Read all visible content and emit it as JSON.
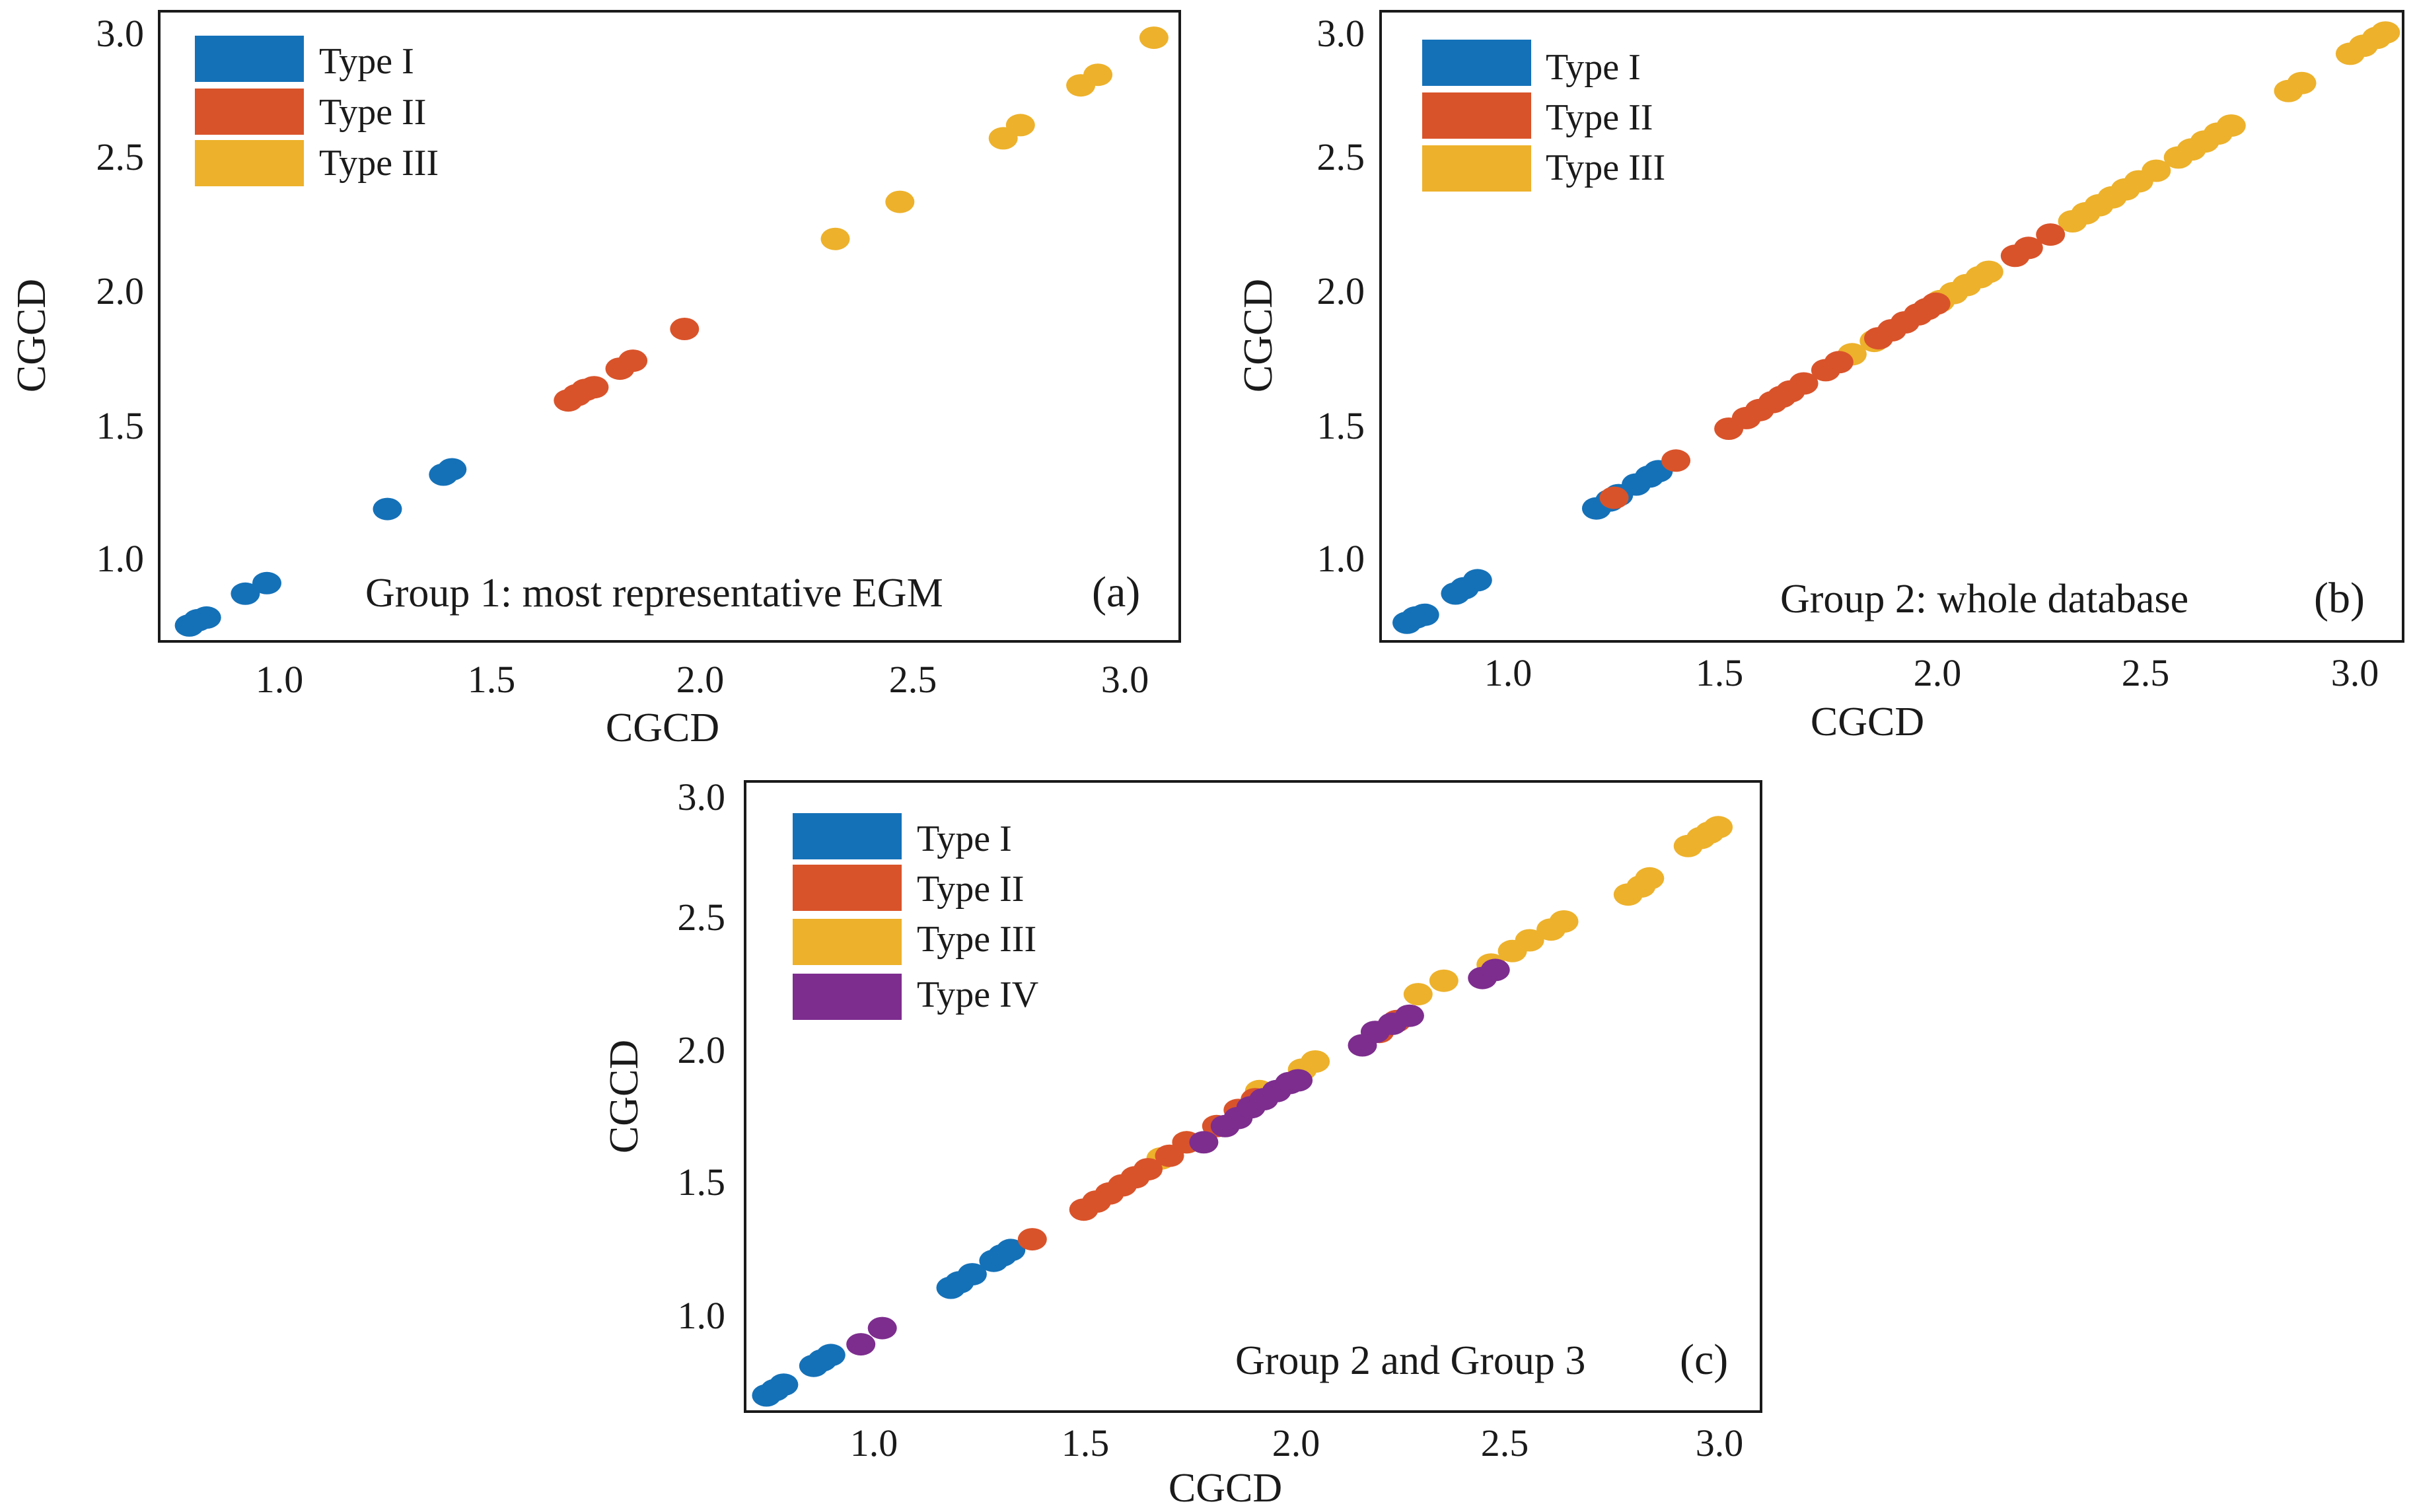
{
  "figure": {
    "colors": {
      "type_i": "#1471B8",
      "type_ii": "#D9532A",
      "type_iii": "#EDB12B",
      "type_iv": "#7D2D8E",
      "axis": "#1a1a1a"
    }
  },
  "chart_data": [
    {
      "id": "a",
      "type": "scatter",
      "xlabel": "CGCD",
      "ylabel": "CGCD",
      "xlim": [
        0.73,
        3.1
      ],
      "ylim": [
        0.72,
        3.1
      ],
      "xticks": [
        "1.0",
        "1.5",
        "2.0",
        "2.5",
        "3.0"
      ],
      "yticks": [
        "1.0",
        "1.5",
        "2.0",
        "2.5",
        "3.0"
      ],
      "annotation": "Group 1: most representative EGM",
      "panel_label": "(a)",
      "legend_position": "top-left",
      "series": [
        {
          "name": "Type I",
          "color": "#1471B8",
          "points": [
            [
              0.8,
              0.78
            ],
            [
              0.82,
              0.8
            ],
            [
              0.84,
              0.81
            ],
            [
              0.93,
              0.9
            ],
            [
              0.98,
              0.94
            ],
            [
              1.26,
              1.22
            ],
            [
              1.39,
              1.35
            ],
            [
              1.41,
              1.37
            ]
          ]
        },
        {
          "name": "Type II",
          "color": "#D9532A",
          "points": [
            [
              1.68,
              1.63
            ],
            [
              1.7,
              1.65
            ],
            [
              1.72,
              1.67
            ],
            [
              1.74,
              1.68
            ],
            [
              1.8,
              1.75
            ],
            [
              1.83,
              1.78
            ],
            [
              1.95,
              1.9
            ]
          ]
        },
        {
          "name": "Type III",
          "color": "#EDB12B",
          "points": [
            [
              2.3,
              2.24
            ],
            [
              2.45,
              2.38
            ],
            [
              2.69,
              2.62
            ],
            [
              2.73,
              2.67
            ],
            [
              2.87,
              2.82
            ],
            [
              2.91,
              2.86
            ],
            [
              3.04,
              3.0
            ]
          ]
        }
      ]
    },
    {
      "id": "b",
      "type": "scatter",
      "xlabel": "CGCD",
      "ylabel": "CGCD",
      "xlim": [
        0.73,
        3.05
      ],
      "ylim": [
        0.72,
        3.09
      ],
      "xticks": [
        "1.0",
        "1.5",
        "2.0",
        "2.5",
        "3.0"
      ],
      "yticks": [
        "1.0",
        "1.5",
        "2.0",
        "2.5",
        "3.0"
      ],
      "annotation": "Group 2: whole database",
      "panel_label": "(b)",
      "legend_position": "top-left",
      "series": [
        {
          "name": "Type I",
          "color": "#1471B8",
          "points": [
            [
              0.79,
              0.79
            ],
            [
              0.81,
              0.81
            ],
            [
              0.83,
              0.82
            ],
            [
              0.9,
              0.9
            ],
            [
              0.92,
              0.92
            ],
            [
              0.95,
              0.95
            ],
            [
              1.22,
              1.22
            ],
            [
              1.25,
              1.25
            ],
            [
              1.27,
              1.27
            ],
            [
              1.31,
              1.31
            ],
            [
              1.34,
              1.34
            ],
            [
              1.36,
              1.36
            ]
          ]
        },
        {
          "name": "Type III",
          "color": "#EDB12B",
          "points": [
            [
              1.8,
              1.8
            ],
            [
              1.85,
              1.85
            ],
            [
              2.0,
              2.0
            ],
            [
              2.03,
              2.03
            ],
            [
              2.06,
              2.06
            ],
            [
              2.09,
              2.09
            ],
            [
              2.11,
              2.11
            ],
            [
              2.3,
              2.3
            ],
            [
              2.33,
              2.33
            ],
            [
              2.36,
              2.36
            ],
            [
              2.39,
              2.39
            ],
            [
              2.42,
              2.42
            ],
            [
              2.45,
              2.45
            ],
            [
              2.49,
              2.49
            ],
            [
              2.54,
              2.54
            ],
            [
              2.57,
              2.57
            ],
            [
              2.6,
              2.6
            ],
            [
              2.63,
              2.63
            ],
            [
              2.66,
              2.66
            ],
            [
              2.79,
              2.79
            ],
            [
              2.82,
              2.82
            ],
            [
              2.93,
              2.93
            ],
            [
              2.96,
              2.96
            ],
            [
              2.99,
              2.99
            ],
            [
              3.01,
              3.01
            ]
          ]
        },
        {
          "name": "Type II",
          "color": "#D9532A",
          "points": [
            [
              1.26,
              1.26
            ],
            [
              1.4,
              1.4
            ],
            [
              1.52,
              1.52
            ],
            [
              1.56,
              1.56
            ],
            [
              1.59,
              1.59
            ],
            [
              1.62,
              1.62
            ],
            [
              1.64,
              1.64
            ],
            [
              1.66,
              1.66
            ],
            [
              1.69,
              1.69
            ],
            [
              1.74,
              1.74
            ],
            [
              1.77,
              1.77
            ],
            [
              1.86,
              1.86
            ],
            [
              1.89,
              1.89
            ],
            [
              1.92,
              1.92
            ],
            [
              1.95,
              1.95
            ],
            [
              1.97,
              1.97
            ],
            [
              1.99,
              1.99
            ],
            [
              2.17,
              2.17
            ],
            [
              2.2,
              2.2
            ],
            [
              2.25,
              2.25
            ]
          ]
        }
      ]
    },
    {
      "id": "c",
      "type": "scatter",
      "xlabel": "CGCD",
      "ylabel": "CGCD",
      "xlim": [
        0.73,
        3.1
      ],
      "ylim": [
        0.72,
        3.06
      ],
      "xticks": [
        "1.0",
        "1.5",
        "2.0",
        "2.5",
        "3.0"
      ],
      "yticks": [
        "1.0",
        "1.5",
        "2.0",
        "2.5",
        "3.0"
      ],
      "annotation": "Group 2 and Group 3",
      "panel_label": "(c)",
      "legend_position": "top-left",
      "series": [
        {
          "name": "Type I",
          "color": "#1471B8",
          "points": [
            [
              0.78,
              0.78
            ],
            [
              0.8,
              0.8
            ],
            [
              0.82,
              0.82
            ],
            [
              0.89,
              0.89
            ],
            [
              0.91,
              0.91
            ],
            [
              0.93,
              0.93
            ],
            [
              1.21,
              1.18
            ],
            [
              1.23,
              1.2
            ],
            [
              1.26,
              1.23
            ],
            [
              1.31,
              1.28
            ],
            [
              1.33,
              1.3
            ],
            [
              1.35,
              1.32
            ]
          ]
        },
        {
          "name": "Type III",
          "color": "#EDB12B",
          "points": [
            [
              1.7,
              1.66
            ],
            [
              1.76,
              1.72
            ],
            [
              1.93,
              1.91
            ],
            [
              2.03,
              1.99
            ],
            [
              2.06,
              2.02
            ],
            [
              2.3,
              2.27
            ],
            [
              2.36,
              2.32
            ],
            [
              2.47,
              2.38
            ],
            [
              2.52,
              2.43
            ],
            [
              2.56,
              2.47
            ],
            [
              2.61,
              2.51
            ],
            [
              2.64,
              2.54
            ],
            [
              2.79,
              2.64
            ],
            [
              2.82,
              2.67
            ],
            [
              2.84,
              2.7
            ],
            [
              2.93,
              2.82
            ],
            [
              2.96,
              2.85
            ],
            [
              2.98,
              2.87
            ],
            [
              3.0,
              2.89
            ]
          ]
        },
        {
          "name": "Type II",
          "color": "#D9532A",
          "points": [
            [
              1.4,
              1.36
            ],
            [
              1.52,
              1.47
            ],
            [
              1.55,
              1.5
            ],
            [
              1.58,
              1.53
            ],
            [
              1.61,
              1.56
            ],
            [
              1.64,
              1.59
            ],
            [
              1.67,
              1.62
            ],
            [
              1.72,
              1.67
            ],
            [
              1.76,
              1.72
            ],
            [
              1.83,
              1.78
            ],
            [
              1.88,
              1.84
            ],
            [
              1.92,
              1.88
            ],
            [
              2.21,
              2.13
            ],
            [
              2.25,
              2.17
            ]
          ]
        },
        {
          "name": "Type IV",
          "color": "#7D2D8E",
          "points": [
            [
              1.0,
              0.97
            ],
            [
              1.05,
              1.03
            ],
            [
              1.8,
              1.72
            ],
            [
              1.85,
              1.78
            ],
            [
              1.88,
              1.81
            ],
            [
              1.91,
              1.85
            ],
            [
              1.94,
              1.88
            ],
            [
              1.97,
              1.91
            ],
            [
              2.0,
              1.94
            ],
            [
              2.02,
              1.95
            ],
            [
              2.17,
              2.08
            ],
            [
              2.2,
              2.13
            ],
            [
              2.24,
              2.16
            ],
            [
              2.28,
              2.19
            ],
            [
              2.45,
              2.33
            ],
            [
              2.48,
              2.36
            ]
          ]
        }
      ]
    }
  ]
}
